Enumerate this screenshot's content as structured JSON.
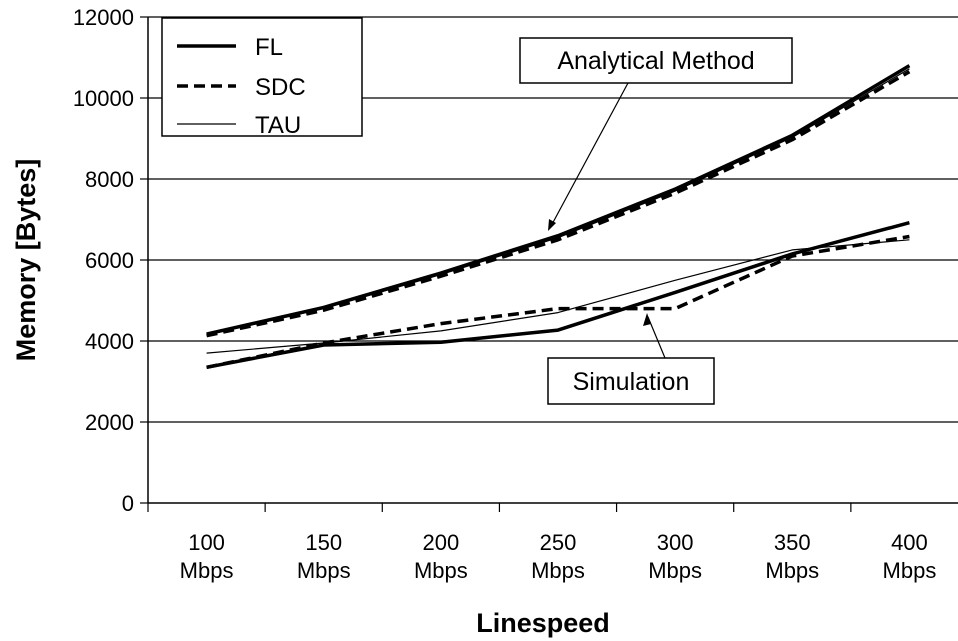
{
  "chart_data": {
    "type": "line",
    "title": "",
    "xlabel": "Linespeed",
    "ylabel": "Memory [Bytes]",
    "categories": [
      [
        "100",
        "Mbps"
      ],
      [
        "150",
        "Mbps"
      ],
      [
        "200",
        "Mbps"
      ],
      [
        "250",
        "Mbps"
      ],
      [
        "300",
        "Mbps"
      ],
      [
        "350",
        "Mbps"
      ],
      [
        "400",
        "Mbps"
      ]
    ],
    "ylim": [
      0,
      12000
    ],
    "yticks": [
      0,
      2000,
      4000,
      6000,
      8000,
      10000,
      12000
    ],
    "grid": "horizontal",
    "legend_position": "top-left",
    "legend": [
      {
        "name": "FL",
        "style": "thick-solid"
      },
      {
        "name": "SDC",
        "style": "dashed"
      },
      {
        "name": "TAU",
        "style": "thin-solid"
      }
    ],
    "series": [
      {
        "name": "FL",
        "group": "Analytical Method",
        "style": "thick-solid",
        "values": [
          4170,
          4830,
          5680,
          6600,
          7750,
          9080,
          10800
        ]
      },
      {
        "name": "SDC",
        "group": "Analytical Method",
        "style": "dashed",
        "values": [
          4130,
          4760,
          5600,
          6500,
          7650,
          8970,
          10650
        ]
      },
      {
        "name": "TAU",
        "group": "Analytical Method",
        "style": "thin-solid",
        "values": [
          4150,
          4800,
          5640,
          6550,
          7700,
          9030,
          10720
        ]
      },
      {
        "name": "FL",
        "group": "Simulation",
        "style": "thick-solid",
        "values": [
          3350,
          3900,
          3970,
          4270,
          5200,
          6150,
          6920
        ]
      },
      {
        "name": "SDC",
        "group": "Simulation",
        "style": "dashed",
        "values": [
          3350,
          3950,
          4430,
          4800,
          4800,
          6100,
          6580
        ]
      },
      {
        "name": "TAU",
        "group": "Simulation",
        "style": "thin-solid",
        "values": [
          3700,
          3950,
          4250,
          4700,
          5500,
          6250,
          6500
        ]
      }
    ],
    "annotations": [
      {
        "text": "Analytical Method",
        "points_to": "Analytical Method"
      },
      {
        "text": "Simulation",
        "points_to": "Simulation"
      }
    ]
  }
}
